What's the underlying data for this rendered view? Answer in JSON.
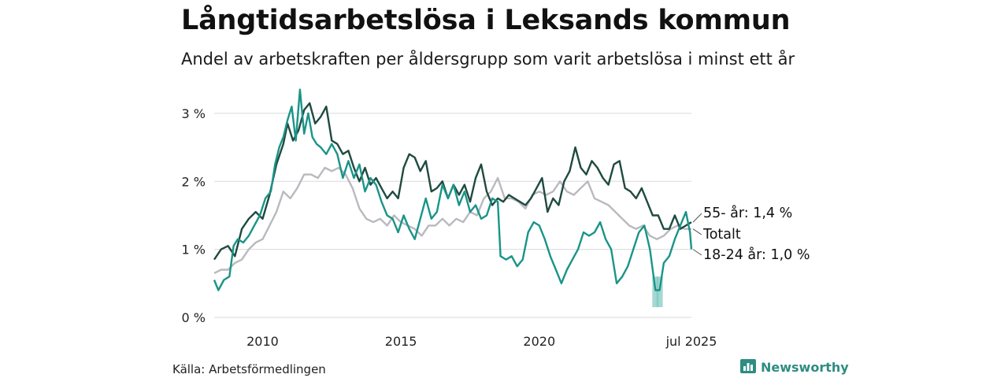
{
  "header": {
    "title": "Långtidsarbetslösa i Leksands kommun",
    "subtitle": "Andel av arbetskraften per åldersgrupp som varit arbetslösa i minst ett år"
  },
  "footer": {
    "source": "Källa: Arbetsförmedlingen",
    "brand": "Newsworthy"
  },
  "colors": {
    "series_55": "#1f4a40",
    "series_total": "#b9b9bf",
    "series_18_24": "#1a9488",
    "grid": "#e0e0e0",
    "brand": "#2f8c82"
  },
  "chart_data": {
    "type": "line",
    "ylim": [
      0,
      3.3
    ],
    "yticks": [
      {
        "value": 0,
        "label": "0 %"
      },
      {
        "value": 1,
        "label": "1 %"
      },
      {
        "value": 2,
        "label": "2 %"
      },
      {
        "value": 3,
        "label": "3 %"
      }
    ],
    "xlim": [
      2008.25,
      2025.5
    ],
    "xticks": [
      {
        "value": 2010,
        "label": "2010"
      },
      {
        "value": 2015,
        "label": "2015"
      },
      {
        "value": 2020,
        "label": "2020"
      },
      {
        "value": 2025.5,
        "label": "jul 2025"
      }
    ],
    "series": [
      {
        "name": "55- år",
        "end_label": "55- år: 1,4 %",
        "points": [
          [
            2008.25,
            0.85
          ],
          [
            2008.5,
            1.0
          ],
          [
            2008.75,
            1.05
          ],
          [
            2009.0,
            0.9
          ],
          [
            2009.25,
            1.3
          ],
          [
            2009.5,
            1.45
          ],
          [
            2009.75,
            1.55
          ],
          [
            2010.0,
            1.45
          ],
          [
            2010.25,
            1.8
          ],
          [
            2010.5,
            2.25
          ],
          [
            2010.75,
            2.55
          ],
          [
            2010.9,
            2.85
          ],
          [
            2011.1,
            2.6
          ],
          [
            2011.3,
            2.75
          ],
          [
            2011.5,
            3.05
          ],
          [
            2011.7,
            3.15
          ],
          [
            2011.9,
            2.85
          ],
          [
            2012.1,
            2.95
          ],
          [
            2012.3,
            3.1
          ],
          [
            2012.5,
            2.6
          ],
          [
            2012.7,
            2.55
          ],
          [
            2012.9,
            2.4
          ],
          [
            2013.1,
            2.45
          ],
          [
            2013.3,
            2.2
          ],
          [
            2013.5,
            2.0
          ],
          [
            2013.7,
            2.2
          ],
          [
            2013.9,
            1.95
          ],
          [
            2014.1,
            2.05
          ],
          [
            2014.3,
            1.9
          ],
          [
            2014.5,
            1.75
          ],
          [
            2014.7,
            1.85
          ],
          [
            2014.9,
            1.75
          ],
          [
            2015.1,
            2.2
          ],
          [
            2015.3,
            2.4
          ],
          [
            2015.5,
            2.35
          ],
          [
            2015.7,
            2.15
          ],
          [
            2015.9,
            2.3
          ],
          [
            2016.1,
            1.85
          ],
          [
            2016.3,
            1.9
          ],
          [
            2016.5,
            2.0
          ],
          [
            2016.7,
            1.75
          ],
          [
            2016.9,
            1.95
          ],
          [
            2017.1,
            1.8
          ],
          [
            2017.3,
            1.95
          ],
          [
            2017.5,
            1.7
          ],
          [
            2017.7,
            2.05
          ],
          [
            2017.9,
            2.25
          ],
          [
            2018.1,
            1.85
          ],
          [
            2018.3,
            1.65
          ],
          [
            2018.5,
            1.75
          ],
          [
            2018.7,
            1.7
          ],
          [
            2018.9,
            1.8
          ],
          [
            2019.1,
            1.75
          ],
          [
            2019.3,
            1.7
          ],
          [
            2019.5,
            1.65
          ],
          [
            2019.7,
            1.75
          ],
          [
            2019.9,
            1.9
          ],
          [
            2020.1,
            2.05
          ],
          [
            2020.3,
            1.55
          ],
          [
            2020.5,
            1.75
          ],
          [
            2020.7,
            1.65
          ],
          [
            2020.9,
            2.0
          ],
          [
            2021.1,
            2.15
          ],
          [
            2021.3,
            2.5
          ],
          [
            2021.5,
            2.2
          ],
          [
            2021.7,
            2.1
          ],
          [
            2021.9,
            2.3
          ],
          [
            2022.1,
            2.2
          ],
          [
            2022.3,
            2.05
          ],
          [
            2022.5,
            1.95
          ],
          [
            2022.7,
            2.25
          ],
          [
            2022.9,
            2.3
          ],
          [
            2023.1,
            1.9
          ],
          [
            2023.3,
            1.85
          ],
          [
            2023.5,
            1.75
          ],
          [
            2023.7,
            1.9
          ],
          [
            2023.9,
            1.7
          ],
          [
            2024.1,
            1.5
          ],
          [
            2024.3,
            1.5
          ],
          [
            2024.5,
            1.3
          ],
          [
            2024.7,
            1.3
          ],
          [
            2024.9,
            1.5
          ],
          [
            2025.1,
            1.3
          ],
          [
            2025.3,
            1.35
          ],
          [
            2025.5,
            1.4
          ]
        ]
      },
      {
        "name": "Totalt",
        "end_label": "Totalt",
        "points": [
          [
            2008.25,
            0.65
          ],
          [
            2008.5,
            0.7
          ],
          [
            2008.75,
            0.7
          ],
          [
            2009.0,
            0.8
          ],
          [
            2009.25,
            0.85
          ],
          [
            2009.5,
            1.0
          ],
          [
            2009.75,
            1.1
          ],
          [
            2010.0,
            1.15
          ],
          [
            2010.25,
            1.35
          ],
          [
            2010.5,
            1.55
          ],
          [
            2010.75,
            1.85
          ],
          [
            2011.0,
            1.75
          ],
          [
            2011.25,
            1.9
          ],
          [
            2011.5,
            2.1
          ],
          [
            2011.75,
            2.1
          ],
          [
            2012.0,
            2.05
          ],
          [
            2012.25,
            2.2
          ],
          [
            2012.5,
            2.15
          ],
          [
            2012.75,
            2.2
          ],
          [
            2013.0,
            2.1
          ],
          [
            2013.25,
            1.9
          ],
          [
            2013.5,
            1.6
          ],
          [
            2013.75,
            1.45
          ],
          [
            2014.0,
            1.4
          ],
          [
            2014.25,
            1.45
          ],
          [
            2014.5,
            1.35
          ],
          [
            2014.75,
            1.5
          ],
          [
            2015.0,
            1.4
          ],
          [
            2015.25,
            1.35
          ],
          [
            2015.5,
            1.3
          ],
          [
            2015.75,
            1.2
          ],
          [
            2016.0,
            1.35
          ],
          [
            2016.25,
            1.35
          ],
          [
            2016.5,
            1.45
          ],
          [
            2016.75,
            1.35
          ],
          [
            2017.0,
            1.45
          ],
          [
            2017.25,
            1.4
          ],
          [
            2017.5,
            1.55
          ],
          [
            2017.75,
            1.5
          ],
          [
            2018.0,
            1.75
          ],
          [
            2018.25,
            1.85
          ],
          [
            2018.5,
            2.05
          ],
          [
            2018.75,
            1.75
          ],
          [
            2019.0,
            1.75
          ],
          [
            2019.25,
            1.7
          ],
          [
            2019.5,
            1.6
          ],
          [
            2019.75,
            1.8
          ],
          [
            2020.0,
            1.85
          ],
          [
            2020.25,
            1.8
          ],
          [
            2020.5,
            1.85
          ],
          [
            2020.75,
            2.0
          ],
          [
            2021.0,
            1.85
          ],
          [
            2021.25,
            1.8
          ],
          [
            2021.5,
            1.9
          ],
          [
            2021.75,
            2.0
          ],
          [
            2022.0,
            1.75
          ],
          [
            2022.25,
            1.7
          ],
          [
            2022.5,
            1.65
          ],
          [
            2022.75,
            1.55
          ],
          [
            2023.0,
            1.45
          ],
          [
            2023.25,
            1.35
          ],
          [
            2023.5,
            1.3
          ],
          [
            2023.75,
            1.35
          ],
          [
            2024.0,
            1.2
          ],
          [
            2024.25,
            1.15
          ],
          [
            2024.5,
            1.2
          ],
          [
            2024.75,
            1.3
          ],
          [
            2025.0,
            1.35
          ],
          [
            2025.25,
            1.3
          ],
          [
            2025.5,
            1.3
          ]
        ]
      },
      {
        "name": "18-24 år",
        "end_label": "18-24 år: 1,0 %",
        "points": [
          [
            2008.25,
            0.55
          ],
          [
            2008.4,
            0.4
          ],
          [
            2008.6,
            0.55
          ],
          [
            2008.8,
            0.6
          ],
          [
            2008.95,
            1.05
          ],
          [
            2009.1,
            1.15
          ],
          [
            2009.3,
            1.1
          ],
          [
            2009.5,
            1.2
          ],
          [
            2009.7,
            1.35
          ],
          [
            2009.9,
            1.5
          ],
          [
            2010.1,
            1.75
          ],
          [
            2010.3,
            1.85
          ],
          [
            2010.45,
            2.25
          ],
          [
            2010.6,
            2.5
          ],
          [
            2010.75,
            2.65
          ],
          [
            2010.9,
            2.9
          ],
          [
            2011.05,
            3.1
          ],
          [
            2011.2,
            2.6
          ],
          [
            2011.35,
            3.35
          ],
          [
            2011.5,
            2.7
          ],
          [
            2011.65,
            3.0
          ],
          [
            2011.8,
            2.65
          ],
          [
            2011.95,
            2.55
          ],
          [
            2012.1,
            2.5
          ],
          [
            2012.3,
            2.4
          ],
          [
            2012.5,
            2.55
          ],
          [
            2012.7,
            2.4
          ],
          [
            2012.9,
            2.05
          ],
          [
            2013.1,
            2.3
          ],
          [
            2013.3,
            2.05
          ],
          [
            2013.5,
            2.25
          ],
          [
            2013.7,
            1.85
          ],
          [
            2013.9,
            2.05
          ],
          [
            2014.1,
            1.95
          ],
          [
            2014.3,
            1.7
          ],
          [
            2014.5,
            1.5
          ],
          [
            2014.7,
            1.45
          ],
          [
            2014.9,
            1.25
          ],
          [
            2015.1,
            1.5
          ],
          [
            2015.3,
            1.3
          ],
          [
            2015.5,
            1.15
          ],
          [
            2015.7,
            1.45
          ],
          [
            2015.9,
            1.75
          ],
          [
            2016.1,
            1.45
          ],
          [
            2016.3,
            1.55
          ],
          [
            2016.5,
            1.95
          ],
          [
            2016.7,
            1.75
          ],
          [
            2016.9,
            1.95
          ],
          [
            2017.1,
            1.65
          ],
          [
            2017.3,
            1.85
          ],
          [
            2017.5,
            1.55
          ],
          [
            2017.7,
            1.65
          ],
          [
            2017.9,
            1.45
          ],
          [
            2018.1,
            1.5
          ],
          [
            2018.3,
            1.75
          ],
          [
            2018.5,
            1.7
          ],
          [
            2018.6,
            0.9
          ],
          [
            2018.8,
            0.85
          ],
          [
            2019.0,
            0.9
          ],
          [
            2019.2,
            0.75
          ],
          [
            2019.4,
            0.85
          ],
          [
            2019.6,
            1.25
          ],
          [
            2019.8,
            1.4
          ],
          [
            2020.0,
            1.35
          ],
          [
            2020.2,
            1.15
          ],
          [
            2020.4,
            0.9
          ],
          [
            2020.6,
            0.7
          ],
          [
            2020.8,
            0.5
          ],
          [
            2021.0,
            0.7
          ],
          [
            2021.2,
            0.85
          ],
          [
            2021.4,
            1.0
          ],
          [
            2021.6,
            1.25
          ],
          [
            2021.8,
            1.2
          ],
          [
            2022.0,
            1.25
          ],
          [
            2022.2,
            1.4
          ],
          [
            2022.4,
            1.15
          ],
          [
            2022.6,
            1.0
          ],
          [
            2022.8,
            0.5
          ],
          [
            2023.0,
            0.6
          ],
          [
            2023.2,
            0.75
          ],
          [
            2023.4,
            1.0
          ],
          [
            2023.6,
            1.25
          ],
          [
            2023.8,
            1.35
          ],
          [
            2024.0,
            1.0
          ],
          [
            2024.2,
            0.4
          ],
          [
            2024.35,
            0.4
          ],
          [
            2024.5,
            0.8
          ],
          [
            2024.7,
            0.9
          ],
          [
            2024.9,
            1.15
          ],
          [
            2025.1,
            1.35
          ],
          [
            2025.3,
            1.55
          ],
          [
            2025.45,
            1.25
          ],
          [
            2025.5,
            1.0
          ]
        ],
        "uncertainty_band": [
          [
            2024.2,
            0.15,
            0.6
          ],
          [
            2024.35,
            0.15,
            0.6
          ]
        ]
      }
    ]
  }
}
